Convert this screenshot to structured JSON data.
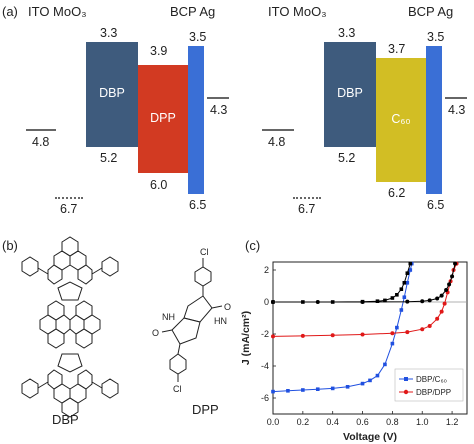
{
  "panel_a": {
    "letter": "(a)",
    "left": {
      "ito_label": "ITO MoO₃",
      "bcp_label": "BCP Ag",
      "ito_level": "4.8",
      "moo3_level": "6.7",
      "dbp_top": "3.3",
      "dbp_bottom": "5.2",
      "acceptor_top": "3.9",
      "acceptor_bottom": "6.0",
      "bcp_top": "3.5",
      "bcp_bottom": "6.5",
      "ag_level": "4.3",
      "donor_name": "DBP",
      "acceptor_name": "DPP"
    },
    "right": {
      "ito_label": "ITO MoO₃",
      "bcp_label": "BCP Ag",
      "ito_level": "4.8",
      "moo3_level": "6.7",
      "dbp_top": "3.3",
      "dbp_bottom": "5.2",
      "acceptor_top": "3.7",
      "acceptor_bottom": "6.2",
      "bcp_top": "3.5",
      "bcp_bottom": "6.5",
      "ag_level": "4.3",
      "donor_name": "DBP",
      "acceptor_name": "C₆₀"
    },
    "colors": {
      "dbp": "#3e5b7d",
      "dpp": "#d23a22",
      "c60": "#d2be24",
      "bcp": "#3a6fd6"
    }
  },
  "panel_b": {
    "letter": "(b)",
    "dbp_caption": "DBP",
    "dpp_caption": "DPP",
    "atoms": {
      "cl": "Cl",
      "nh": "NH",
      "hn": "HN",
      "o": "O"
    }
  },
  "chart_data": {
    "type": "line",
    "panel_letter": "(c)",
    "xlabel": "Voltage (V)",
    "ylabel": "J (mA/cm²)",
    "xlim": [
      0.0,
      1.3
    ],
    "ylim": [
      -7,
      2.5
    ],
    "xticks": [
      "0.0",
      "0.2",
      "0.4",
      "0.6",
      "0.8",
      "1.0",
      "1.2"
    ],
    "yticks": [
      "2",
      "0",
      "-2",
      "-4",
      "-6"
    ],
    "legend_position": "bottom-right",
    "series": [
      {
        "name": "DBP/C₆₀",
        "color": "#2050e0",
        "marker": "square",
        "x": [
          0.0,
          0.1,
          0.2,
          0.3,
          0.4,
          0.5,
          0.6,
          0.65,
          0.7,
          0.75,
          0.8,
          0.83,
          0.86,
          0.88,
          0.9,
          0.92,
          0.93
        ],
        "y": [
          -5.6,
          -5.55,
          -5.5,
          -5.45,
          -5.4,
          -5.3,
          -5.1,
          -4.9,
          -4.6,
          -3.9,
          -2.6,
          -1.6,
          -0.5,
          0.3,
          1.2,
          2.0,
          2.4
        ]
      },
      {
        "name": "DBP/DPP",
        "color": "#e01818",
        "marker": "circle",
        "x": [
          0.0,
          0.2,
          0.4,
          0.6,
          0.8,
          0.9,
          1.0,
          1.05,
          1.1,
          1.13,
          1.15,
          1.17,
          1.19,
          1.21,
          1.23
        ],
        "y": [
          -2.15,
          -2.12,
          -2.08,
          -2.03,
          -1.95,
          -1.88,
          -1.7,
          -1.5,
          -1.05,
          -0.6,
          -0.1,
          0.6,
          1.3,
          2.0,
          2.4
        ]
      },
      {
        "name": "",
        "color": "#000000",
        "marker": "square",
        "x": [
          0.0,
          0.2,
          0.4,
          0.6,
          0.7,
          0.75,
          0.8,
          0.83,
          0.86,
          0.88,
          0.9,
          0.92
        ],
        "y": [
          0.0,
          0.0,
          0.0,
          0.02,
          0.05,
          0.1,
          0.25,
          0.45,
          0.8,
          1.2,
          1.8,
          2.4
        ]
      },
      {
        "name": "",
        "color": "#000000",
        "marker": "circle",
        "x": [
          0.0,
          0.3,
          0.6,
          0.9,
          1.0,
          1.05,
          1.1,
          1.13,
          1.16,
          1.18,
          1.2,
          1.22
        ],
        "y": [
          0.0,
          0.0,
          0.0,
          0.02,
          0.05,
          0.1,
          0.22,
          0.4,
          0.75,
          1.1,
          1.6,
          2.4
        ]
      }
    ]
  }
}
